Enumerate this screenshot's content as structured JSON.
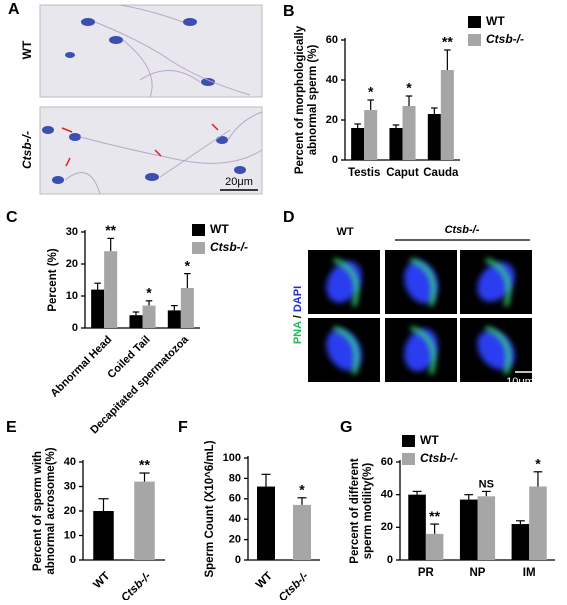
{
  "chart_data": [
    {
      "type": "bar",
      "panel": "B",
      "ylabel": [
        "Percent of morphologically",
        "abnormal sperm (%)"
      ],
      "categories": [
        "Testis",
        "Caput",
        "Cauda"
      ],
      "series": [
        {
          "name": "WT",
          "color": "#000000",
          "values": [
            16,
            16,
            23
          ],
          "errors": [
            2,
            1.5,
            3
          ],
          "significance": [
            null,
            null,
            null
          ]
        },
        {
          "name": "Ctsb-/-",
          "color": "#a6a6a6",
          "values": [
            25,
            27,
            45
          ],
          "errors": [
            5,
            5,
            10
          ],
          "significance": [
            "*",
            "*",
            "**"
          ]
        }
      ],
      "ylim": [
        0,
        60
      ],
      "yticks": [
        0,
        20,
        40,
        60
      ],
      "legend": "upper right"
    },
    {
      "type": "bar",
      "panel": "C",
      "ylabel": [
        "Percent (%)"
      ],
      "categories": [
        "Abnormal Head",
        "Coiled Tail",
        "Decapitated spermatozoa"
      ],
      "series": [
        {
          "name": "WT",
          "color": "#000000",
          "values": [
            12,
            4,
            5.5
          ],
          "errors": [
            2,
            1,
            1.5
          ],
          "significance": [
            null,
            null,
            null
          ]
        },
        {
          "name": "Ctsb-/-",
          "color": "#a6a6a6",
          "values": [
            24,
            7,
            12.5
          ],
          "errors": [
            4,
            1.5,
            4.5
          ],
          "significance": [
            "**",
            "*",
            "*"
          ]
        }
      ],
      "ylim": [
        0,
        30
      ],
      "yticks": [
        0,
        10,
        20,
        30
      ],
      "legend": "upper right"
    },
    {
      "type": "bar",
      "panel": "E",
      "ylabel": [
        "Percent of sperm with",
        "abnormal acrosome(%)"
      ],
      "categories": [
        "WT",
        "Ctsb-/-"
      ],
      "series": [
        {
          "colors": [
            "#000000",
            "#a6a6a6"
          ],
          "values": [
            20,
            32
          ],
          "errors": [
            5,
            3.5
          ],
          "significance": [
            null,
            "**"
          ]
        }
      ],
      "ylim": [
        0,
        40
      ],
      "yticks": [
        0,
        10,
        20,
        30,
        40
      ]
    },
    {
      "type": "bar",
      "panel": "F",
      "ylabel": [
        "Sperm Count (X10^6/mL)"
      ],
      "categories": [
        "WT",
        "Ctsb-/-"
      ],
      "series": [
        {
          "colors": [
            "#000000",
            "#a6a6a6"
          ],
          "values": [
            72,
            54
          ],
          "errors": [
            12,
            7
          ],
          "significance": [
            null,
            "*"
          ]
        }
      ],
      "ylim": [
        0,
        100
      ],
      "yticks": [
        0,
        20,
        40,
        60,
        80,
        100
      ]
    },
    {
      "type": "bar",
      "panel": "G",
      "ylabel": [
        "Percent of different",
        "sperm motility(%)"
      ],
      "categories": [
        "PR",
        "NP",
        "IM"
      ],
      "series": [
        {
          "name": "WT",
          "color": "#000000",
          "values": [
            40,
            37,
            22
          ],
          "errors": [
            2,
            3,
            2
          ],
          "significance": [
            null,
            null,
            null
          ]
        },
        {
          "name": "Ctsb-/-",
          "color": "#a6a6a6",
          "values": [
            16,
            39,
            45
          ],
          "errors": [
            6,
            3,
            9
          ],
          "significance": [
            "**",
            "NS",
            "*"
          ]
        }
      ],
      "ylim": [
        0,
        60
      ],
      "yticks": [
        0,
        20,
        40,
        60
      ],
      "legend": "upper left"
    }
  ],
  "image_panels": [
    {
      "panel": "A",
      "row_labels": [
        "WT",
        "Ctsb-/-"
      ],
      "scale_bar": "20μm"
    },
    {
      "panel": "D",
      "column_labels": [
        "WT",
        "Ctsb-/-"
      ],
      "stain_labels": [
        "PNA",
        "/",
        "DAPI"
      ],
      "scale_bar": "10μm"
    }
  ]
}
